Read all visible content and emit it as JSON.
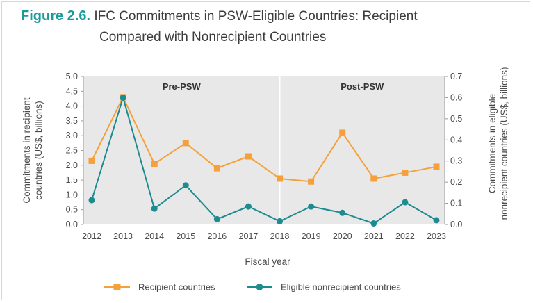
{
  "figure": {
    "label": "Figure 2.6.",
    "title_line1": "IFC Commitments in PSW-Eligible Countries: Recipient",
    "title_line2": "Compared with Nonrecipient Countries"
  },
  "colors": {
    "recipient": "#f5a03a",
    "nonrecipient": "#1d8b8f",
    "plot_bg": "#e8e8e8",
    "divider": "#ffffff"
  },
  "chart_data": {
    "type": "line",
    "x": [
      "2012",
      "2013",
      "2014",
      "2015",
      "2016",
      "2017",
      "2018",
      "2019",
      "2020",
      "2021",
      "2022",
      "2023"
    ],
    "xlabel": "Fiscal year",
    "ylabel_left": "Commitments in recipient countries (US$, billions)",
    "ylabel_right": "Commitments in eligible nonrecipient countries (US$, billions)",
    "ylim_left": [
      0,
      5.0
    ],
    "ylim_right": [
      0,
      0.7
    ],
    "yticks_left": [
      "0.0",
      "0.5",
      "1.0",
      "1.5",
      "2.0",
      "2.5",
      "3.0",
      "3.5",
      "4.0",
      "4.5",
      "5.0"
    ],
    "yticks_right": [
      "0.0",
      "0.1",
      "0.2",
      "0.3",
      "0.4",
      "0.5",
      "0.6",
      "0.7"
    ],
    "periods": [
      {
        "label": "Pre-PSW",
        "from": "2012",
        "to": "2018"
      },
      {
        "label": "Post-PSW",
        "from": "2018",
        "to": "2023"
      }
    ],
    "series": [
      {
        "name": "Recipient countries",
        "axis": "left",
        "marker": "square",
        "values": [
          2.15,
          4.3,
          2.05,
          2.75,
          1.9,
          2.3,
          1.55,
          1.45,
          3.1,
          1.55,
          1.75,
          1.95
        ]
      },
      {
        "name": "Eligible nonrecipient countries",
        "axis": "right",
        "marker": "circle",
        "values": [
          0.115,
          0.6,
          0.075,
          0.185,
          0.025,
          0.085,
          0.015,
          0.085,
          0.055,
          0.005,
          0.105,
          0.02
        ]
      }
    ],
    "legend_position": "bottom"
  }
}
